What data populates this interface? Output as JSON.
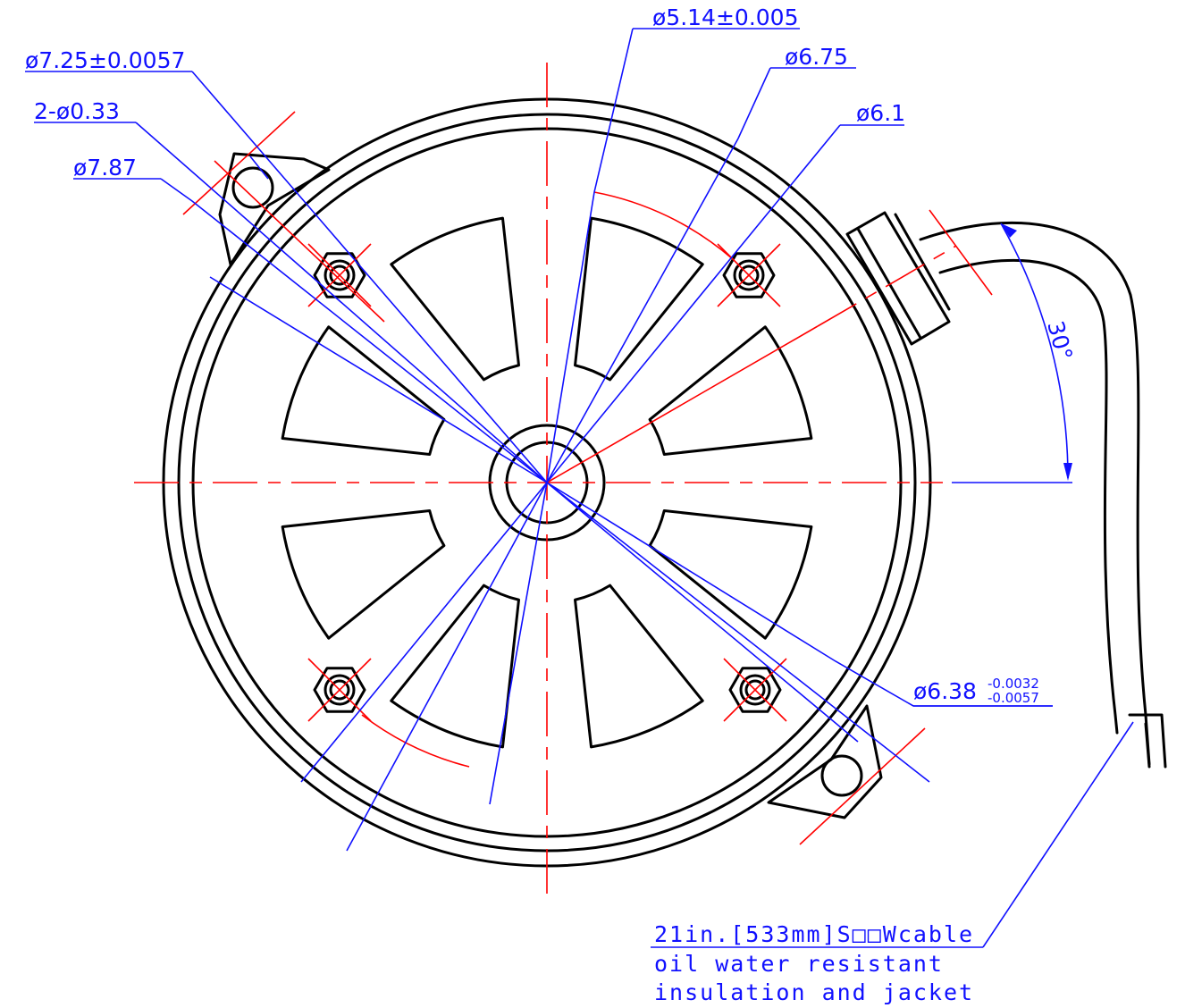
{
  "dimensions": [
    {
      "label": "ø5.14±0.005"
    },
    {
      "label": "ø6.75"
    },
    {
      "label": "ø6.1"
    },
    {
      "label": "ø7.25±0.0057"
    },
    {
      "label": "2-ø0.33"
    },
    {
      "label": "ø7.87"
    }
  ],
  "tolerance_dimension": {
    "label": "ø6.38",
    "upper": "-0.0032",
    "lower": "-0.0057"
  },
  "angle": "30°",
  "cable_note": [
    "21in.[533mm]S□□Wcable",
    "oil water resistant",
    "insulation and jacket"
  ]
}
